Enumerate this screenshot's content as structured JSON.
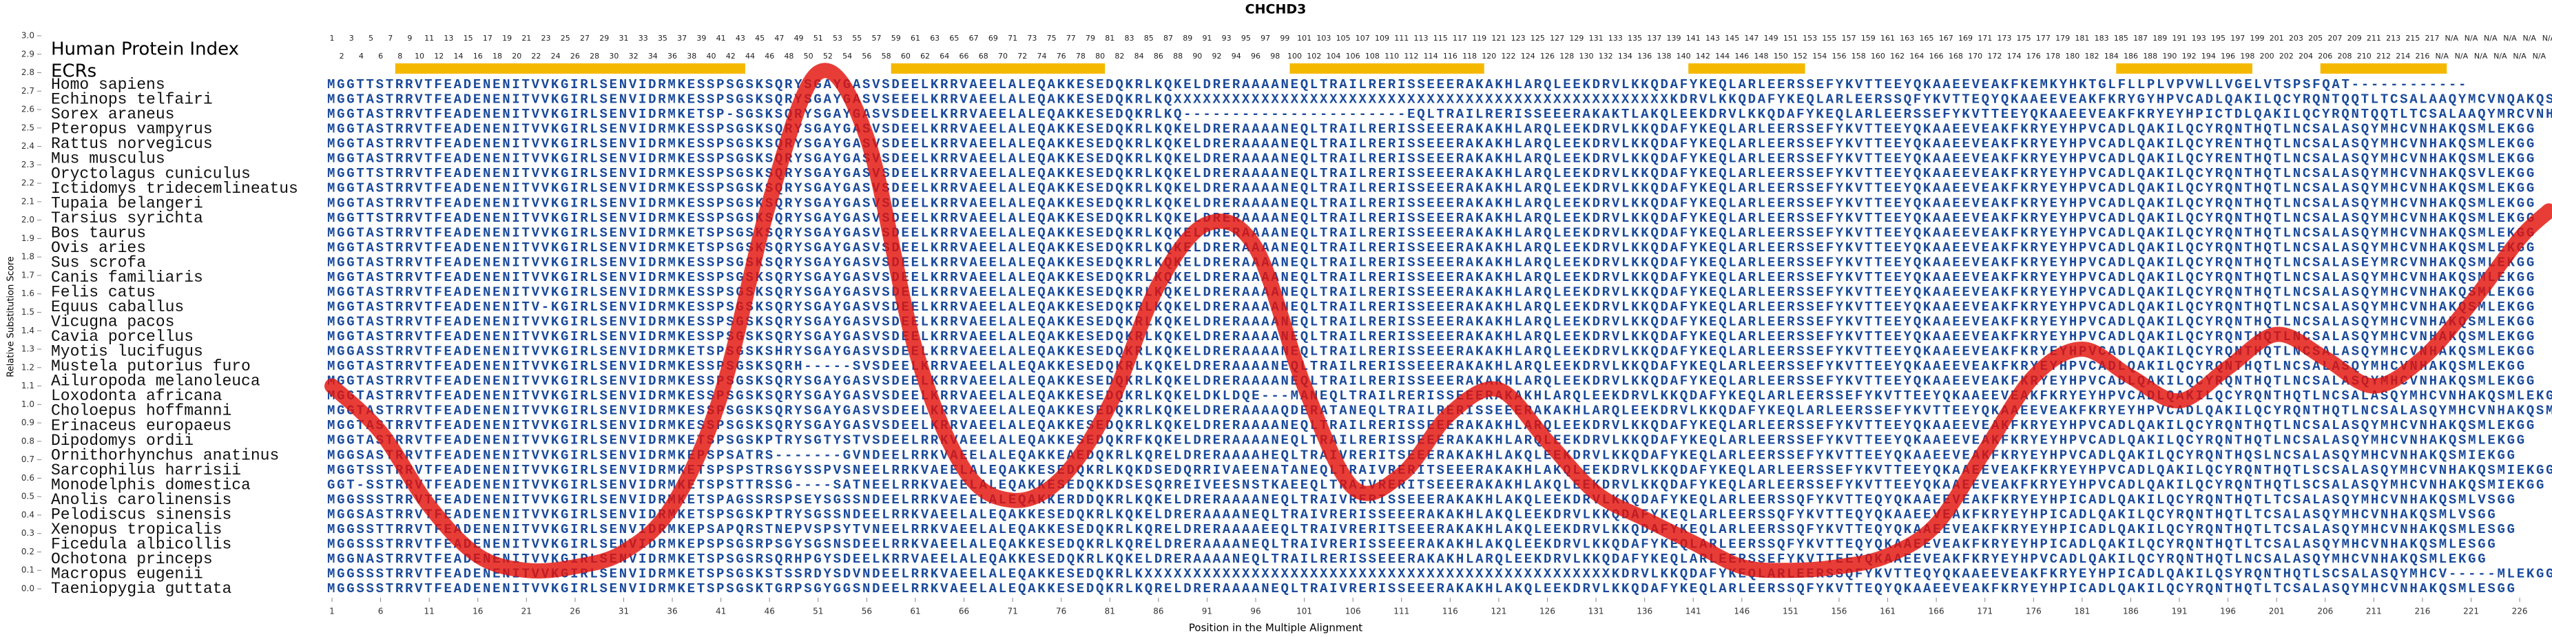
{
  "chart_data": {
    "type": "alignment",
    "title": "CHCHD3",
    "index_label": "Human Protein Index",
    "ecr_label": "ECRs",
    "y_label": "Relative Substitution Score",
    "x_label": "Position in the Multiple Alignment",
    "xlim": [
      0.5,
      229
    ],
    "ylim": [
      0,
      3.0
    ],
    "xticks": [
      1,
      6,
      11,
      16,
      21,
      26,
      31,
      36,
      41,
      46,
      51,
      56,
      61,
      66,
      71,
      76,
      81,
      86,
      91,
      96,
      101,
      106,
      111,
      116,
      121,
      126,
      131,
      136,
      141,
      146,
      151,
      156,
      161,
      166,
      171,
      176,
      181,
      186,
      191,
      196,
      201,
      206,
      211,
      216,
      221,
      226
    ],
    "yticks": [
      {
        "value": 0,
        "label": "0.0"
      },
      0.1,
      0.2,
      0.3,
      0.4,
      0.5,
      0.6,
      0.7,
      0.8,
      0.9,
      {
        "value": 1,
        "label": "1.0"
      },
      1.1,
      1.2,
      1.3,
      1.4,
      1.5,
      1.6,
      1.7,
      1.8,
      1.9,
      {
        "value": 2,
        "label": "2.0"
      },
      2.1,
      2.2,
      2.3,
      2.4,
      2.5,
      2.6,
      2.7,
      2.8,
      2.9,
      {
        "value": 3,
        "label": "3.0"
      }
    ],
    "ecr_color": "#f5b800",
    "ecrs": [
      [
        8,
        43
      ],
      [
        59,
        80
      ],
      [
        100,
        119
      ],
      [
        141,
        152
      ],
      [
        185,
        198
      ],
      [
        206,
        218
      ]
    ],
    "sequence_color": "#1a4a9a",
    "human_index": [
      1,
      2,
      3,
      4,
      5,
      6,
      7,
      8,
      9,
      10,
      11,
      12,
      13,
      14,
      15,
      16,
      17,
      18,
      19,
      20,
      21,
      22,
      23,
      24,
      25,
      26,
      27,
      28,
      29,
      30,
      31,
      32,
      33,
      34,
      35,
      36,
      37,
      38,
      39,
      40,
      41,
      42,
      43,
      44,
      45,
      46,
      47,
      48,
      49,
      50,
      51,
      52,
      53,
      54,
      55,
      56,
      57,
      58,
      59,
      60,
      61,
      62,
      63,
      64,
      65,
      66,
      67,
      68,
      69,
      70,
      71,
      72,
      73,
      74,
      75,
      76,
      77,
      78,
      79,
      80,
      81,
      82,
      83,
      84,
      85,
      86,
      87,
      88,
      89,
      90,
      91,
      92,
      93,
      94,
      95,
      96,
      97,
      98,
      99,
      100,
      101,
      102,
      103,
      104,
      105,
      106,
      107,
      108,
      109,
      110,
      111,
      112,
      113,
      114,
      115,
      116,
      117,
      118,
      119,
      120,
      121,
      122,
      123,
      124,
      125,
      126,
      127,
      128,
      129,
      130,
      131,
      132,
      133,
      134,
      135,
      136,
      137,
      138,
      139,
      140,
      141,
      142,
      143,
      144,
      145,
      146,
      147,
      148,
      149,
      150,
      151,
      152,
      153,
      154,
      155,
      156,
      157,
      158,
      159,
      160,
      161,
      162,
      163,
      164,
      165,
      166,
      167,
      168,
      169,
      170,
      171,
      172,
      173,
      174,
      175,
      176,
      177,
      178,
      179,
      180,
      181,
      182,
      183,
      184,
      185,
      186,
      187,
      188,
      189,
      190,
      191,
      192,
      193,
      194,
      195,
      196,
      197,
      198,
      199,
      200,
      201,
      202,
      203,
      204,
      205,
      206,
      207,
      208,
      209,
      210,
      211,
      212,
      213,
      214,
      215,
      216,
      217,
      "N/A",
      "N/A",
      "N/A",
      "N/A",
      "N/A",
      "N/A",
      "N/A",
      "N/A",
      "N/A",
      "N/A",
      "N/A",
      "N/A"
    ],
    "species": [
      "Homo sapiens",
      "Echinops telfairi",
      "Sorex araneus",
      "Pteropus vampyrus",
      "Rattus norvegicus",
      "Mus musculus",
      "Oryctolagus cuniculus",
      "Ictidomys tridecemlineatus",
      "Tupaia belangeri",
      "Tarsius syrichta",
      "Bos taurus",
      "Ovis aries",
      "Sus scrofa",
      "Canis familiaris",
      "Felis catus",
      "Equus caballus",
      "Vicugna pacos",
      "Cavia porcellus",
      "Myotis lucifugus",
      "Mustela putorius furo",
      "Ailuropoda melanoleuca",
      "Loxodonta africana",
      "Choloepus hoffmanni",
      "Erinaceus europaeus",
      "Dipodomys ordii",
      "Ornithorhynchus anatinus",
      "Sarcophilus harrisii",
      "Monodelphis domestica",
      "Anolis carolinensis",
      "Pelodiscus sinensis",
      "Xenopus tropicalis",
      "Ficedula albicollis",
      "Ochotona princeps",
      "Macropus eugenii",
      "Taeniopygia guttata"
    ],
    "sequences": [
      "MGGTTSTRRVTFEADENENITVVKGIRLSENVIDRMKESSPSGSKSQRYSGAYGASVSDEELKRRVAEELALEQAKKESEDQKRLKQKELDRERAAAANEQLTRAILRERISSEEERAKAKHLARQLEEKDRVLKKQDAFYKEQLARLEERSSEFYKVTTEEYQKAAEEVEAKFKEMKYHKTGLFLLPLVPVWLLVGELVTSPSFQAT------------",
      "MGGTASTRRVTFEADENENITVVKGIRLSENVIDRMKESSPSGSKSQRYSGAYGASVSEEELKRRVAEELALEQAKKESEDQKRLKQXXXXXXXXXXXXXXXXXXXXXXXXXXXXXXXXXXXXXXXXXXXXXXXXXXXKDRVLKKQDAFYKEQLARLEERSSQFYKVTTEQYQKAAEEVEAKFKRYGYHPVCADLQAKILQCYRQNTQQTLTCSALAAQYMCVNQAKQSGLLKQG",
      "MGGTASTRRVTFEADENENITVVKGIRLSENVIDRMKETSP-SGSKSQRYSGAYGASVSDEELKRRVAEELALEQAKKESEDQKRLKQ-----------------------EQLTRAILRERISSEEERAKAKTLAKQLEEKDRVLKKQDAFYKEQLARLEERSSEFYKVTTEEYQKAAEEVEAKFKRYEYHPICTDLQAKILQCYRQNTQQTLTCSALAAQYMRCVNHAKQSMIEKGG",
      "MGGTASTRRVTFEADENENITVVKGIRLSENVIDRMKESSPSGSKSQRYSGAYGASVSDEELKRRVAEELALEQAKKESEDQKRLKQKELDRERAAAANEQLTRAILRERISSEEERAKAKHLARQLEEKDRVLKKQDAFYKEQLARLEERSSEFYKVTTEEYQKAAEEVEAKFKRYEYHPVCADLQAKILQCYRQNTHQTLNCSALASQYMHCVNHAKQSMLEKGG",
      "MGGTASTRRVTFEADENENITVVKGIRLSENVIDRMKESSPSGSKSQRYSGAYGASVSDEELKRRVAEELALEQAKKESEDQKRLKQKELDRERAAAANEQLTRAILRERISSEEERAKAKHLARQLEEKDRVLKKQDAFYKEQLARLEERSSEFYKVTTEEYQKAAEEVEAKFKRYEYHPVCADLQAKILQCYRENTHQTLNCSALASQYMHCVNHAKQSMLEKGG",
      "MGGTASTRRVTFEADENENITVVKGIRLSENVIDRMKESSPSGSKSQRYSGAYGASVSDEELKRRVAEELALEQAKKESEDQKRLKQKELDRERAAAANEQLTRAILRERISSEEERAKAKHLARQLEEKDRVLKKQDAFYKEQLARLEERSSEFYKVTTEEYQKAAEEVEAKFKRYEYHPVCADLQAKILQCYRENTHQTLNCSALASQYMHCVNHAKQSMLEKGG",
      "MGGTTSTRRVTFEADENENITVVKGIRLSENVIDRMKESSPSGSKSQRYSGAYGASVSDEELKRRVAEELALEQAKKESEDQKRLKQKELDRERAAAANEQLTRAILRERISSEEERAKAKHLARQLEEKDRVLKKQDAFYKEQLARLEERSSEFYKVTTEEYQKAAEEVEAKFKRYEYHPVCADLQAKILQCYRQNTHQTLNCSALASQYMHCVNHAKQSVLEKGG",
      "MGGTASTRRVTFEADENENITVVKGIRLSENVIDRMKESSPSGSKSQRYSGAYGASVSDEELKRRVAEELALEQAKKESEDQKRLKQKELDRERAAAANEQLTRAILRERISSEEERAKAKHLARQLEEKDRVLKKQDAFYKEQLARLEERSSEFYKVTTEEYQKAAEEVEAKFKRYEYHPVCADLQAKILQCYRQNTHQTLNCSALASQYMHCVNHAKQSMLEKGG",
      "MGGTASTRRVTFEADENENITVVKGIRLSENVIDRMKESSPSGSKSQRYSGAYGASVSDEELKRRVAEELALEQAKKESEDQKRLKQKELDRERAAAANEQLTRAILRERISSEEERAKAKHLARQLEEKDRVLKKQDAFYKEQLARLEERSSEFYKVTTEEYQKAAEEVEAKFKRYEYHPVCADLQAKILQCYRQNTHQTLNCSALASQYMHCVNHAKQSMLEKGG",
      "MGGTTSTRRVTFEADENENITVVKGIRLSENVIDRMKESSPSGSKSQRYSGAYGASVSDEELKRRVAEELALEQAKKESEDQKRLKQKELDRERAAAANEQLTRAILRERISSEEERAKAKHLARQLEEKDRVLKKQDAFYKEQLARLEERSSEFYKVTTEEYQKAAEEVEAKFKRYEYHPVCADLQAKILQCYRQNTHQTLNCSALASQYMHCVNHAKQSMLEKGG",
      "MGGTASTRRVTFEADENENITVVKGIRLSENVIDRMKETSPSGSKSQRYSGAYGASVSDEELKRRVAEELALEQAKKESEDQKRLKQKELDRERAAAANEQLTRAILRERISSEEERAKAKHLARQLEEKDRVLKKQDAFYKEQLARLEERSSEFYKVTTEEYQKAAEEVEAKFKRYEYHPVCADLQAKILQCYRQNTHQTLNCSALASQYMHCVNHAKQSMLEKGG",
      "MGGTASTRRVTFEADENENITVVKGIRLSENVIDRMKETSPSGSKSQRYSGAYGASVSDEELKRRVAEELALEQAKKESEDQKRLKQKELDRERAAAANEQLTRAILRERISSEEERAKAKHLARQLEEKDRVLKKQDAFYKEQLARLEERSSEFYKVTTEEYQKAAEEVEAKFKRYEYHPVCADLQAKILQCYRQNTHQTLNCSALASQYMHCVNHAKQSMLEKGG",
      "MGGTASTRRVTFEADENENITVVKGIRLSENVIDRMKESSPSGSKSQRYSGAYGASVSDEELKRRVAEELALEQAKKESEDQKRLKQKELDRERAAAANEQLTRAILRERISSEEERAKAKHLARQLEEKDRVLKKQDAFYKEQLARLEERSSEFYKVTTEEYQKAAEEVEAKFKRYEYHPVCADLQAKILQCYRQNTHQTLNCSALASEYMRCVNHAKQSMLEKGG",
      "MGGTASTRRVTFEADENENITVVKGIRLSENVIDRMKESSPSGSKSQRYSGAYGASVSDEELKRRVAEELALEQAKKESEDQKRLKQKELDRERAAAANEQLTRAILRERISSEEERAKAKHLARQLEEKDRVLKKQDAFYKEQLARLEERSSEFYKVTTEEYQKAAEEVEAKFKRYEYHPVCADLQAKILQCYRQNTHQTLNCSALASQYMHCVNHAKQSMLEKGG",
      "MGGTASTRRVTFEADENENITVVKGIRLSENVIDRMKESSPSGSKSQRYSGAYGASVSDEELKRRVAEELALEQAKKESEDQKRLKQKELDRERAAAANEQLTRAILRERISSEEERAKAKHLARQLEEKDRVLKKQDAFYKEQLARLEERSSEFYKVTTEEYQKAAEEVEAKFKRYEYHPVCADLQAKILQCYRQNTHQTLNCSALASQYMHCVNHAKQSMLEKGG",
      "MGGTASTRRVTFEADENENITV-KGIRLSENVIDRMKESSPSGSKSQRYSGAYGASVSDEELKRRVAEELALEQAKKESEDQKRLKQKELDRERAAAANEQLTRAILRERISSEEERAKAKHLARQLEEKDRVLKKQDAFYKEQLARLEERSSEFYKVTTEEYQKAAEEVEAKFKRYEYHPVCADLQAKILQCYRQNTHQTLNCSALASQYMHCVNHAKQSMLEKGG",
      "MGGTASTRRVTFEADENENITVVKGIRLSENVIDRMKESSPSGSKSQRYSGAYGASVSDEELKRRVAEELALEQAKKESEDQKRLKQKELDRERAAAANEQLTRAILRERISSEEERAKAKHLARQLEEKDRVLKKQDAFYKEQLARLEERSSEFYKVTTEEYQKAAEEVEAKFKRYEYHPVCADLQAKILQCYRQNTHQTLNCSALASQYMHCVNHAKQSMLEKGG",
      "MGGTASTRRVTFEADENENITVVKGIRLSENVIDRMKESSPSGSKSQRYSGAYGASVSDEELKRRVAEELALEQAKKESEDQKRLKQKELDRERAAAANEQLTRAILRERISSEEERAKAKHLARQLEEKDRVLKKQDAFYKEQLARLEERSSEFYKVTTEEYQKAAEEVEAKFKRYEYHPVCADLQAKILQCYRQNTHQTLNCSALASQYMHCVNHAKQSMLEKGG",
      "MGGASSTRRVTFEADENENITVVKGIRLSENVIDRMKETSPSGSKSHRYSGAYGASVSDEELKRRVAEELALEQAKKESEDQKRLKQKELDRERAAAANEQLTRAILRERISSEEERAKAKHLARQLEEKDRVLKKQDAFYKEQLARLEERSSEFYKVTTEEYQKAAEEVEAKFKRYEYHPVCADLQAKILQCYRQNTHQTLNCSALASQYMHCVNHAKQSMLEKGG",
      "MGGTASTRRVTFEADENENITVVKGIRLSENVIDRMKESSPSGSKSQRH-----SVSDEELKRRVAEELALEQAKKESEDQKRLKQKELDRERAAAANEQLTRAILRERISSEEERAKAKHLARQLEEKDRVLKKQDAFYKEQLARLEERSSEFYKVTTEEYQKAAEEVEAKFKRYEYHPVCADLQAKILQCYRQNTHQTLNCSALASQYMHCVNHAKQSMLEKGG",
      "MGGTASTRRVTFEADENENITVVKGIRLSENVIDRMKESSPSGSKSQRYSGAYGASVSDEELKRRVAEELALEQAKKESEDQKRLKQKELDRERAAAANEQLTRAILRERISSEEERAKAKHLARQLEEKDRVLKKQDAFYKEQLARLEERSSEFYKVTTEEYQKAAEEVEAKFKRYEYHPVCADLQAKILQCYRQNTHQTLNCSALASQYMHCVNHAKQSMLEKGG",
      "MGGTASTRRVTFEADENENITVVKGIRLSENVIDRMKESSPSGSKSQRYSGAYGASVSDEELKRRVAEELALEQAKKESEDQKRLKQKELDKLDQE---MANEQLTRAILRERISSEEERAKAKHLARQLEEKDRVLKKQDAFYKEQLARLEERSSEFYKVTTEEYQKAAEEVEAKFKRYEYHPVCADLQAKILQCYRQNTHQTLNCSALASQYMHCVNHAKQSMLEKGG",
      "MGGTASTRRVTFEADENENITVVKGIRLSENVIDRMKESSPSGSKSQRYSGAYGASVSDEELKRRVAEELALEQAKKESEDQKRLKQKELDRERAAAAQDERATANEQLTRAILRERISSEEERAKAKHLARQLEEKDRVLKKQDAFYKEQLARLEERSSEFYKVTTEEYQKAAEEVEAKFKRYEYHPVCADLQAKILQCYRQNTHQTLNCSALASQYMHCVNHAKQSMLEKGG",
      "MGGTASTRRVTFEADENENITVVKGIRLSENVIDRMKESSPSGSKSQRYSGAYGASVSDEELKRRVAEELALEQAKKESEDQKRLKQKELDRERAAAANEQLTRAILRERISSEEERAKAKHLARQLEEKDRVLKKQDAFYKEQLARLEERSSEFYKVTTEEYQKAAEEVEAKFKRYEYHPVCADLQAKILQCYRQNTHQTLNCSALASQYMHCVNHAKQSMLEKGG",
      "MGGTASTRRVTFEADENENITVVKGIRLSENVIDRMKETSPSGSKPTRYSGTYSTVSDEELRRKVAEELALEQAKKESEDQKRFKQKELDRERAAAANEQLTRAILRERISSEEERAKAKHLARQLEEKDRVLKKQDAFYKEQLARLEERSSEFYKVTTEEYQKAAEEVEAKFKRYEYHPVCADLQAKILQCYRQNTHQTLNCSALASQYMHCVNHAKQSMLEKGG",
      "MGGSASTRRVTFEADENENITVVKGIRLSENVIDRMKEPSPSATRS-------GVNDEELRRKVAEELALEQAKKEAEDQKRLKQRELDRERAAAAHEQLTRAIVRERITSEEERAKAKHLAKQLEEKDRVLKKQDAFYKEQLARLEERSSEFYKVTTEEYQKAAEEVEAKFKRYEYHPVCADLQAKILQCYRQNTHQSLNCSALASQYMHCVNHAKQSMIEKGG",
      "MGGTSSTRRVTFEADENENITVVKGIRLSENVIDRMKETSPSPSTRSGYSSPVSNEELRRKVAEELALEQAKKESEDQKRLKQKDSEDQRRIVAEENATANEQLTRAIVRERITSEEERAKAKHLAKQLEEKDRVLKKQDAFYKEQLARLEERSSEFYKVTTEEYQKAAEEVEAKFKRYEYHPVCADLQAKILQCYRQNTHQTLSCSALASQYMHCVNHAKQSMIEKGG",
      "GGT-SSTRRVTFEADENENITVVKGIRLSENVIDRMKETSPSTTRSSG----SATNEELRRKVAEELALEQAKKESEDQKKDSESQRREIVEESNSTKAEEQLTRAIVRERITSEEERAKAKHLAKQLEEKDRVLKKQDAFYKEQLARLEERSSEFYKVTTEEYQKAAEEVEAKFKRYEYHPVCADLQAKILQCYRQNTHQTLSCSALASQYMHCVNHAKQSMIEKGG",
      "MGGSSSTRRVTFEADENENITVVKGIRLSENVIDRMKETSPAGSSRSPSEYSGSSNDEELRRKVAEELALEQAKKERDDQKRLKQKELDRERAAAANEQLTRAIVRERISSEEERAKAKHLAKQLEEKDRVLKKQDAFYKEQLARLEERSSQFYKVTTEQYQKAAEEVEAKFKRYEYHPICADLQAKILQCYRQNTHQTLTCSALASQYMHCVNHAKQSMLVSGG",
      "MGGSASTRRVTFEADENENITVVKGIRLSENVIDRMKETSPSGSKPTRYSGSSNDEELRRKVAEELALEQAKKESEDQKRLKQKELDRERAAAANEQLTRAIVRERISSEEERAKAKHLAKQLEEKDRVLKKQDAFYKEQLARLEERSSQFYKVTTEQYQKAAEEVEAKFKRYEYHPICADLQAKILQCYRQNTHQTLTCSALASQYMHCVNHAKQSMLVSGG",
      "MGGSSTTRRVTFEADENENITVVKGIRLSENVIDRMKEPSAPQRSTNEPVSPSYTVNEELRRKVAEELALEQAKKESEDQKRLKQRELDRERAAAAEEQLTRAIVRERITSEEERAKAKHLAKQLEEKDRVLKKQDAFYKEQLARLEERSSQFYKVTTEQYQKAAEEVEAKFKRYEYHPICADLQAKILQCYRQNTHQTLTCSALASQYMHCVNHAKQSMLESGG",
      "MGGSSSTRRVTFEADENENITVVKGIRLSENVIDRMKEPSPSGSRPSGYSGSNSDEELRRKVAEELALEQAKKESEDQKRLKQRELDRERAAAANEQLTRAIVRERISSEEERAKAKHLAKQLEEKDRVLKKQDAFYKEQLARLEERSSQFYKVTTEQYQKAAEEVEAKFKRYEYHPICADLQAKILQCYRQNTHQTLTCSALASQYMHCVNHAKQSMLESGG",
      "MGGNASTRRVTFEADENENITVVKGIRLSENVIDRMKETSPSGSRSQRHPGYSDEELKRRVAEELALEQAKKESEDQKRLKQKELDRERAAAANEQLTRAILRERISSEEERAKAKHLARQLEEKDRVLKKQDAFYKEQLARLEERSSEFYKVTTEEYQKAAEEVEAKFKRYEYHPVCADLQAKILQCYRQNTHQTLNCSALASQYMHCVNHAKQSMLEKGG",
      "MGGSSSTRRVTFEADENENITVVKGIRLSENVIDRMKETSPSGSKSTSSRDYSDVNDEELRRKVAEELALEQAKKESEDQKRLKXXXXXXXXXXXXXXXXXXXXXXXXXXXXXXXXXXXXXXXXXXXXXXXXKDRVLKKQDAFYKEQLARLEERSSQFYKVTTEQYQKAAEEVEAKFKRYEYHPICADLQAKILQSYRQNTHQTLSCSALASQYMHCV-----MLEKGG",
      "MGGSSSTRRVTFEADENENITVVKGIRLSENVIDRMKETSPSGSKTGRPSGYGGSNDEELRRKVAEELALEQAKKESEDQKRLKQRELDRERAAAANEQLTRAIVRERISSEEERAKAKHLAKQLEEKDRVLKKQDAFYKEQLARLEERSSQFYKVTTEQYQKAAEEVEAKFKRYEYHPICADLQAKILQCYRQNTHQTLTCSALASQYMHCVNHAKQSMLESGG"
    ],
    "line": {
      "color": "#e3120b",
      "x": [
        1,
        6,
        11,
        16,
        21,
        26,
        31,
        36,
        41,
        46,
        51,
        56,
        61,
        66,
        71,
        76,
        81,
        86,
        91,
        96,
        101,
        106,
        111,
        116,
        121,
        126,
        131,
        136,
        141,
        146,
        151,
        156,
        161,
        166,
        171,
        176,
        181,
        186,
        191,
        196,
        201,
        206,
        211,
        216,
        221,
        226,
        229
      ],
      "values": [
        1.1,
        0.85,
        0.45,
        0.18,
        0.1,
        0.12,
        0.2,
        0.45,
        1.05,
        2.1,
        2.8,
        2.45,
        1.3,
        0.65,
        0.48,
        0.6,
        1.0,
        1.65,
        1.98,
        1.85,
        1.1,
        0.55,
        0.62,
        0.95,
        1.08,
        0.8,
        0.52,
        0.38,
        0.25,
        0.12,
        0.1,
        0.12,
        0.18,
        0.35,
        0.75,
        1.15,
        1.3,
        1.15,
        1.02,
        1.2,
        1.38,
        1.25,
        1.1,
        1.25,
        1.55,
        1.9,
        2.05
      ]
    }
  }
}
